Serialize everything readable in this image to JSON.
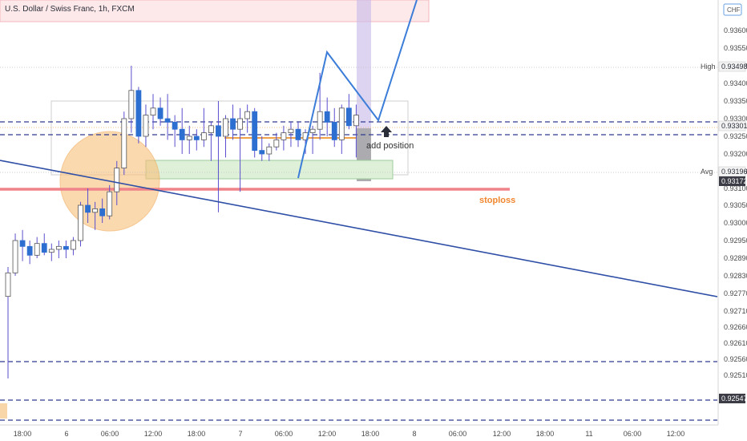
{
  "chart_data": {
    "type": "candlestick",
    "title": "U.S. Dollar / Swiss Franc, 1h, FXCM",
    "currency": "CHF",
    "y_ticks": [
      0.936,
      0.9355,
      0.935,
      0.934,
      0.9335,
      0.933,
      0.9325,
      0.932,
      0.9315,
      0.931,
      0.9305,
      0.93,
      0.9295,
      0.9289,
      0.9283,
      0.9277,
      0.9271,
      0.9266,
      0.9261,
      0.9256,
      0.9251
    ],
    "y_tick_labels": [
      "0.93600",
      "0.93550",
      "0.93500",
      "0.93400",
      "0.93350",
      "0.93300",
      "0.93250",
      "0.93200",
      "0.93150",
      "0.93100",
      "0.93050",
      "0.93000",
      "0.92950",
      "0.92890",
      "0.92830",
      "0.92770",
      "0.92710",
      "0.92660",
      "0.92610",
      "0.92560",
      "0.92510"
    ],
    "x_tick_labels": [
      "18:00",
      "6",
      "06:00",
      "12:00",
      "18:00",
      "7",
      "06:00",
      "12:00",
      "18:00",
      "8",
      "06:00",
      "12:00",
      "18:00",
      "11",
      "06:00",
      "12:00"
    ],
    "price_labels": [
      {
        "label": "High",
        "value": "0.93498"
      },
      {
        "label": "",
        "value": "0.93301"
      },
      {
        "label": "Avg",
        "value": "0.93196"
      },
      {
        "label": "",
        "value": "0.93172"
      },
      {
        "label": "",
        "value": "0.92547"
      }
    ],
    "candles_ohlc": [
      [
        0.9276,
        0.9286,
        0.925,
        0.9284
      ],
      [
        0.9284,
        0.9297,
        0.9283,
        0.9295
      ],
      [
        0.9295,
        0.9298,
        0.9288,
        0.9293
      ],
      [
        0.9293,
        0.9295,
        0.9287,
        0.929
      ],
      [
        0.929,
        0.9296,
        0.9289,
        0.9294
      ],
      [
        0.9294,
        0.9297,
        0.929,
        0.9291
      ],
      [
        0.9291,
        0.9294,
        0.9288,
        0.9292
      ],
      [
        0.9292,
        0.9295,
        0.9289,
        0.9293
      ],
      [
        0.9293,
        0.9295,
        0.9289,
        0.9292
      ],
      [
        0.9292,
        0.9296,
        0.929,
        0.9295
      ],
      [
        0.9295,
        0.9306,
        0.9293,
        0.9305
      ],
      [
        0.9305,
        0.931,
        0.93,
        0.9303
      ],
      [
        0.9303,
        0.9306,
        0.9298,
        0.9304
      ],
      [
        0.9304,
        0.9307,
        0.93,
        0.9302
      ],
      [
        0.9302,
        0.9311,
        0.9301,
        0.9309
      ],
      [
        0.9309,
        0.9318,
        0.9305,
        0.9316
      ],
      [
        0.9316,
        0.9332,
        0.9314,
        0.933
      ],
      [
        0.933,
        0.935,
        0.9326,
        0.9338
      ],
      [
        0.9338,
        0.9339,
        0.9323,
        0.9325
      ],
      [
        0.9325,
        0.9334,
        0.9322,
        0.9331
      ],
      [
        0.9331,
        0.9337,
        0.9327,
        0.9333
      ],
      [
        0.9333,
        0.9336,
        0.9328,
        0.933
      ],
      [
        0.933,
        0.9337,
        0.9324,
        0.9329
      ],
      [
        0.9329,
        0.9331,
        0.9322,
        0.9327
      ],
      [
        0.9327,
        0.9333,
        0.932,
        0.9324
      ],
      [
        0.9324,
        0.9328,
        0.932,
        0.9325
      ],
      [
        0.9325,
        0.9327,
        0.9321,
        0.9324
      ],
      [
        0.9324,
        0.9333,
        0.9322,
        0.9326
      ],
      [
        0.9326,
        0.9329,
        0.9318,
        0.9328
      ],
      [
        0.9328,
        0.9335,
        0.9303,
        0.9325
      ],
      [
        0.9325,
        0.9331,
        0.9319,
        0.933
      ],
      [
        0.933,
        0.9334,
        0.9324,
        0.9327
      ],
      [
        0.9327,
        0.9333,
        0.9309,
        0.933
      ],
      [
        0.933,
        0.9334,
        0.9326,
        0.9332
      ],
      [
        0.9332,
        0.9333,
        0.9319,
        0.9321
      ],
      [
        0.9321,
        0.9325,
        0.9318,
        0.932
      ],
      [
        0.932,
        0.9323,
        0.9318,
        0.9322
      ],
      [
        0.9322,
        0.9326,
        0.9321,
        0.9324
      ],
      [
        0.9324,
        0.9328,
        0.9321,
        0.9326
      ],
      [
        0.9326,
        0.9329,
        0.9322,
        0.9327
      ],
      [
        0.9327,
        0.9329,
        0.9322,
        0.9324
      ],
      [
        0.9324,
        0.9327,
        0.932,
        0.9326
      ],
      [
        0.9326,
        0.9328,
        0.932,
        0.9327
      ],
      [
        0.9327,
        0.9346,
        0.9324,
        0.9332
      ],
      [
        0.9332,
        0.9336,
        0.9325,
        0.9329
      ],
      [
        0.9329,
        0.9333,
        0.9322,
        0.9324
      ],
      [
        0.9324,
        0.9334,
        0.932,
        0.9333
      ],
      [
        0.9333,
        0.9337,
        0.9327,
        0.9328
      ],
      [
        0.9328,
        0.9334,
        0.9319,
        0.9331
      ]
    ],
    "horizontal_levels": [
      0.93335,
      0.93301,
      0.9266,
      0.92547,
      0.9251
    ],
    "stoploss_level": 0.93172,
    "annotations": [
      "stoploss",
      "add position"
    ],
    "colors": {
      "up": "#ffffff",
      "down": "#2d6fd1",
      "wick": "#5a4fcf",
      "projection": "#3b7dd8",
      "trendline": "#2f4fa6",
      "stoploss": "#f0828a",
      "label": "#f0862e"
    }
  }
}
